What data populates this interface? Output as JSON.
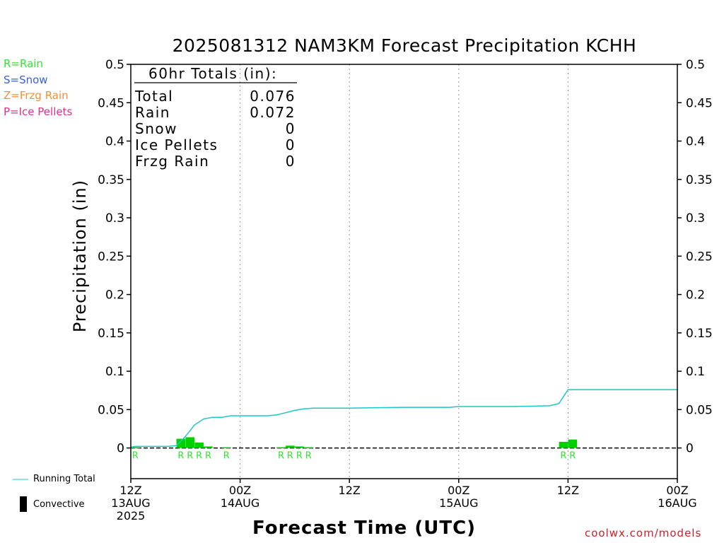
{
  "title": "2025081312 NAM3KM Forecast Precipitation KCHH",
  "credit": "coolwx.com/models",
  "type_legend": [
    {
      "label": "R=Rain",
      "color": "#2ee82e"
    },
    {
      "label": "S=Snow",
      "color": "#3a5fe0"
    },
    {
      "label": "Z=Frzg Rain",
      "color": "#f0903a"
    },
    {
      "label": "P=Ice Pellets",
      "color": "#e0308a"
    }
  ],
  "bottom_legend": {
    "running_total": "Running Total",
    "convective": "Convective"
  },
  "totals": {
    "heading": "60hr Totals (in):",
    "rows": [
      {
        "label": "Total",
        "value": "0.076"
      },
      {
        "label": "Rain",
        "value": "0.072"
      },
      {
        "label": "Snow",
        "value": "0"
      },
      {
        "label": "Ice Pellets",
        "value": "0"
      },
      {
        "label": "Frzg Rain",
        "value": "0"
      }
    ]
  },
  "colors": {
    "running_total": "#19c8c8",
    "bars": "#00d000",
    "rain_marker": "#2ee82e",
    "credit": "#d0202a"
  },
  "chart_data": {
    "type": "bar",
    "title": "2025081312 NAM3KM Forecast Precipitation KCHH",
    "xlabel": "Forecast Time (UTC)",
    "ylabel": "Precipitation (in)",
    "ylim": [
      -0.04,
      0.5
    ],
    "xlim_hours": [
      0,
      60
    ],
    "yticks": [
      0,
      0.05,
      0.1,
      0.15,
      0.2,
      0.25,
      0.3,
      0.35,
      0.4,
      0.45,
      0.5
    ],
    "ytick_labels": [
      "0",
      "0.05",
      "0.1",
      "0.15",
      "0.2",
      "0.25",
      "0.3",
      "0.35",
      "0.4",
      "0.45",
      "0.5"
    ],
    "grid_x": "dotted, every 12 h",
    "x_ticks": [
      {
        "hour": 0,
        "lines": [
          "12Z",
          "13AUG",
          "2025"
        ]
      },
      {
        "hour": 12,
        "lines": [
          "00Z",
          "14AUG"
        ]
      },
      {
        "hour": 24,
        "lines": [
          "12Z"
        ]
      },
      {
        "hour": 36,
        "lines": [
          "00Z",
          "15AUG"
        ]
      },
      {
        "hour": 48,
        "lines": [
          "12Z"
        ]
      },
      {
        "hour": 60,
        "lines": [
          "00Z",
          "16AUG"
        ]
      }
    ],
    "bars": [
      {
        "hour": 0.5,
        "value": 0.001
      },
      {
        "hour": 5.5,
        "value": 0.012
      },
      {
        "hour": 6.5,
        "value": 0.014
      },
      {
        "hour": 7.5,
        "value": 0.007
      },
      {
        "hour": 8.5,
        "value": 0.002
      },
      {
        "hour": 10.5,
        "value": 0.001
      },
      {
        "hour": 16.5,
        "value": 0.001
      },
      {
        "hour": 17.5,
        "value": 0.003
      },
      {
        "hour": 18.5,
        "value": 0.002
      },
      {
        "hour": 19.5,
        "value": 0.001
      },
      {
        "hour": 47.5,
        "value": 0.008
      },
      {
        "hour": 48.5,
        "value": 0.011
      }
    ],
    "precip_type_markers": [
      {
        "hour": 0.5,
        "label": "R"
      },
      {
        "hour": 5.5,
        "label": "R"
      },
      {
        "hour": 6.5,
        "label": "R"
      },
      {
        "hour": 7.5,
        "label": "R"
      },
      {
        "hour": 8.5,
        "label": "R"
      },
      {
        "hour": 10.5,
        "label": "R"
      },
      {
        "hour": 16.5,
        "label": "R"
      },
      {
        "hour": 17.5,
        "label": "R"
      },
      {
        "hour": 18.5,
        "label": "R"
      },
      {
        "hour": 19.5,
        "label": "R"
      },
      {
        "hour": 47.5,
        "label": "R"
      },
      {
        "hour": 48.5,
        "label": "R"
      }
    ],
    "running_total": {
      "name": "Running Total",
      "x": [
        0,
        0.5,
        1,
        4,
        5,
        6,
        7,
        8,
        9,
        10,
        11,
        12,
        15,
        16,
        17,
        18,
        19,
        20,
        21,
        24,
        30,
        35,
        36,
        42,
        46,
        47,
        48,
        60
      ],
      "y": [
        0.001,
        0.002,
        0.002,
        0.002,
        0.003,
        0.015,
        0.03,
        0.038,
        0.04,
        0.04,
        0.042,
        0.042,
        0.042,
        0.043,
        0.046,
        0.049,
        0.051,
        0.052,
        0.052,
        0.052,
        0.053,
        0.053,
        0.054,
        0.054,
        0.055,
        0.058,
        0.076,
        0.076
      ]
    }
  }
}
